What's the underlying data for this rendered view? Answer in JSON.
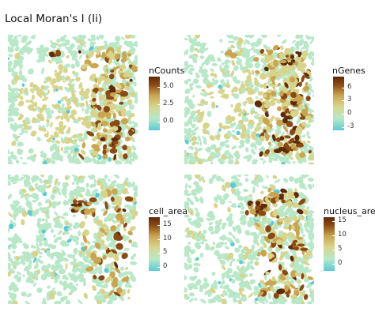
{
  "page": {
    "title": "Local Moran's I (Ii)"
  },
  "colors": {
    "low": "#5dc9d6",
    "mid_low": "#b8e8c8",
    "mid": "#d8d48c",
    "mid_high": "#c9a552",
    "high": "#8a4a14",
    "peak": "#5e2a0a",
    "background_patch": "#b7e4c5"
  },
  "chart_data": [
    {
      "type": "heatmap",
      "title": "",
      "legend": {
        "title": "nCounts",
        "ticks": [
          "5.0",
          "2.5",
          "0.0"
        ],
        "tick_values": [
          5.0,
          2.5,
          0.0
        ],
        "range": [
          -1.3,
          6.5
        ],
        "placement": "right"
      }
    },
    {
      "type": "heatmap",
      "title": "",
      "legend": {
        "title": "nGenes",
        "ticks": [
          "6",
          "3",
          "0",
          "-3"
        ],
        "tick_values": [
          6,
          3,
          0,
          -3
        ],
        "range": [
          -3.8,
          8.5
        ],
        "placement": "right"
      }
    },
    {
      "type": "heatmap",
      "title": "",
      "legend": {
        "title": "cell_area",
        "ticks": [
          "15",
          "10",
          "5",
          "0"
        ],
        "tick_values": [
          15,
          10,
          5,
          0
        ],
        "range": [
          -1.5,
          18
        ],
        "placement": "right"
      }
    },
    {
      "type": "heatmap",
      "title": "",
      "legend": {
        "title": "nucleus_area",
        "ticks": [
          "15",
          "10",
          "5",
          "0"
        ],
        "tick_values": [
          15,
          10,
          5,
          0
        ],
        "range": [
          -2.5,
          16.5
        ],
        "placement": "right"
      }
    }
  ]
}
